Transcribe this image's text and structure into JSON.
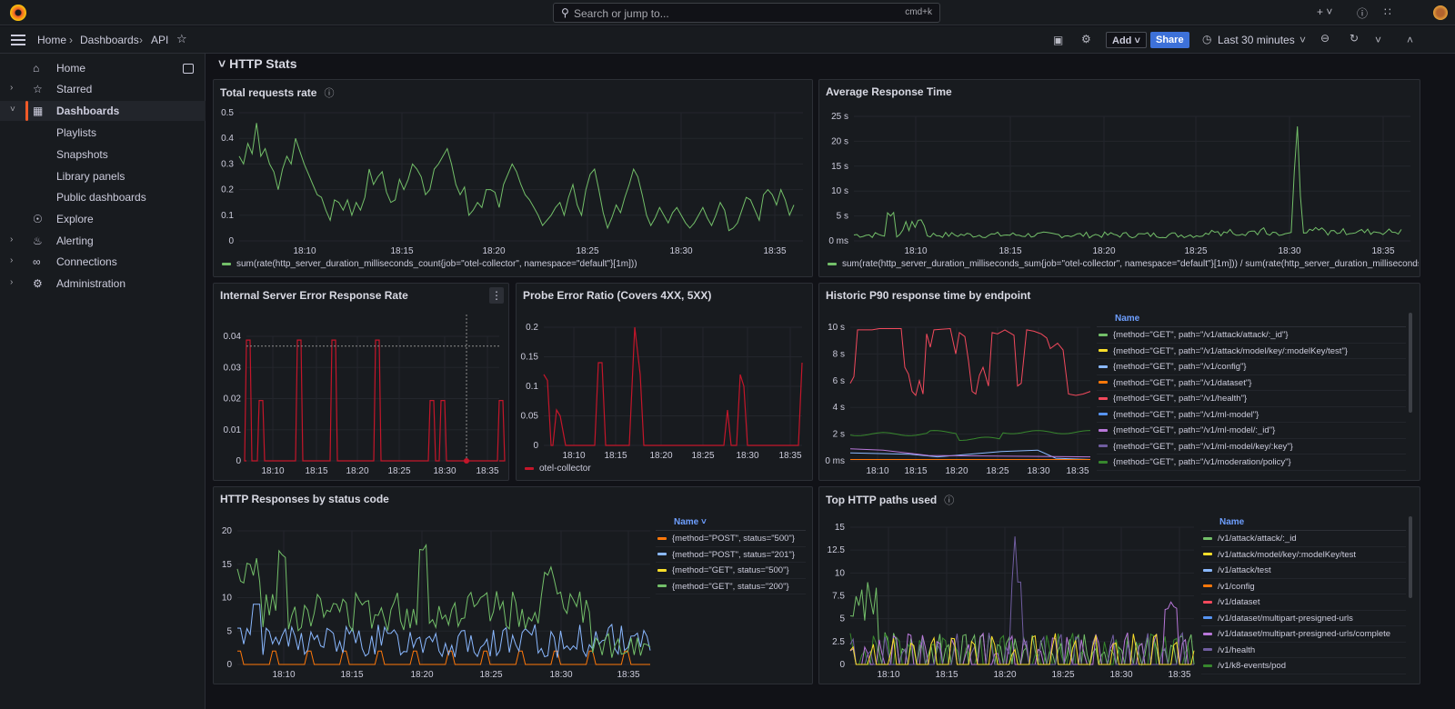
{
  "topbar": {
    "search_placeholder": "Search or jump to...",
    "search_shortcut": "cmd+k",
    "icons": [
      "grafana-logo-icon",
      "search-icon",
      "plus-icon",
      "help-icon",
      "rss-icon",
      "user-avatar"
    ]
  },
  "breadcrumb": {
    "home": "Home",
    "dashboards": "Dashboards",
    "current": "API"
  },
  "toolbar": {
    "add_label": "Add",
    "share_label": "Share",
    "time_range": "Last 30 minutes"
  },
  "sidebar": {
    "items": [
      {
        "label": "Home",
        "icon": "home-icon",
        "expandable": false
      },
      {
        "label": "Starred",
        "icon": "star-icon",
        "expandable": true
      },
      {
        "label": "Dashboards",
        "icon": "apps-icon",
        "expandable": true,
        "active": true
      },
      {
        "label": "Playlists",
        "sub": true
      },
      {
        "label": "Snapshots",
        "sub": true
      },
      {
        "label": "Library panels",
        "sub": true
      },
      {
        "label": "Public dashboards",
        "sub": true
      },
      {
        "label": "Explore",
        "icon": "compass-icon",
        "expandable": false
      },
      {
        "label": "Alerting",
        "icon": "bell-icon",
        "expandable": true
      },
      {
        "label": "Connections",
        "icon": "link-icon",
        "expandable": true
      },
      {
        "label": "Administration",
        "icon": "cog-icon",
        "expandable": true
      }
    ]
  },
  "row_title": "HTTP Stats",
  "colors": {
    "green": "#73bf69",
    "red": "#c4162a",
    "orange": "#ff780a",
    "blue": "#8ab8ff",
    "yellow": "#fade2a",
    "purple": "#ca95e5",
    "pink": "#f2495c",
    "darkgreen": "#37872d",
    "brand": "#f05a28",
    "share": "#3d71d9"
  },
  "time_ticks": [
    "18:10",
    "18:15",
    "18:20",
    "18:25",
    "18:30",
    "18:35"
  ],
  "panels": {
    "total_requests": {
      "title": "Total requests rate",
      "legend": "sum(rate(http_server_duration_milliseconds_count{job=\"otel-collector\", namespace=\"default\"}[1m]))",
      "yticks": [
        "0.5",
        "0.4",
        "0.3",
        "0.2",
        "0.1",
        "0"
      ]
    },
    "avg_response": {
      "title": "Average Response Time",
      "legend": "sum(rate(http_server_duration_milliseconds_sum{job=\"otel-collector\", namespace=\"default\"}[1m])) / sum(rate(http_server_duration_milliseconds_co",
      "yticks": [
        "25 s",
        "20 s",
        "15 s",
        "10 s",
        "5 s",
        "0 ms"
      ]
    },
    "internal_error": {
      "title": "Internal Server Error Response Rate",
      "yticks": [
        "0.04",
        "0.03",
        "0.02",
        "0.01",
        "0"
      ]
    },
    "probe_error": {
      "title": "Probe Error Ratio (Covers 4XX, 5XX)",
      "legend": "otel-collector",
      "yticks": [
        "0.2",
        "0.15",
        "0.1",
        "0.05",
        "0"
      ]
    },
    "p90": {
      "title": "Historic P90 response time by endpoint",
      "legend_header": "Name",
      "yticks": [
        "10 s",
        "8 s",
        "6 s",
        "4 s",
        "2 s",
        "0 ms"
      ],
      "series": [
        {
          "name": "{method=\"GET\", path=\"/v1/attack/attack/:_id\"}",
          "color": "#73bf69"
        },
        {
          "name": "{method=\"GET\", path=\"/v1/attack/model/key/:modelKey/test\"}",
          "color": "#fade2a"
        },
        {
          "name": "{method=\"GET\", path=\"/v1/config\"}",
          "color": "#8ab8ff"
        },
        {
          "name": "{method=\"GET\", path=\"/v1/dataset\"}",
          "color": "#ff780a"
        },
        {
          "name": "{method=\"GET\", path=\"/v1/health\"}",
          "color": "#f2495c"
        },
        {
          "name": "{method=\"GET\", path=\"/v1/ml-model\"}",
          "color": "#5794f2"
        },
        {
          "name": "{method=\"GET\", path=\"/v1/ml-model/:_id\"}",
          "color": "#b877d9"
        },
        {
          "name": "{method=\"GET\", path=\"/v1/ml-model/key/:key\"}",
          "color": "#705da0"
        },
        {
          "name": "{method=\"GET\", path=\"/v1/moderation/policy\"}",
          "color": "#37872d"
        }
      ]
    },
    "status_codes": {
      "title": "HTTP Responses by status code",
      "legend_header": "Name",
      "yticks": [
        "20",
        "15",
        "10",
        "5",
        "0"
      ],
      "series": [
        {
          "name": "{method=\"POST\", status=\"500\"}",
          "color": "#ff780a"
        },
        {
          "name": "{method=\"POST\", status=\"201\"}",
          "color": "#8ab8ff"
        },
        {
          "name": "{method=\"GET\", status=\"500\"}",
          "color": "#fade2a"
        },
        {
          "name": "{method=\"GET\", status=\"200\"}",
          "color": "#73bf69"
        }
      ]
    },
    "top_paths": {
      "title": "Top HTTP paths used",
      "legend_header": "Name",
      "yticks": [
        "15",
        "12.5",
        "10",
        "7.5",
        "5",
        "2.5",
        "0"
      ],
      "series": [
        {
          "name": "/v1/attack/attack/:_id",
          "color": "#73bf69"
        },
        {
          "name": "/v1/attack/model/key/:modelKey/test",
          "color": "#fade2a"
        },
        {
          "name": "/v1/attack/test",
          "color": "#8ab8ff"
        },
        {
          "name": "/v1/config",
          "color": "#ff780a"
        },
        {
          "name": "/v1/dataset",
          "color": "#f2495c"
        },
        {
          "name": "/v1/dataset/multipart-presigned-urls",
          "color": "#5794f2"
        },
        {
          "name": "/v1/dataset/multipart-presigned-urls/complete",
          "color": "#b877d9"
        },
        {
          "name": "/v1/health",
          "color": "#705da0"
        },
        {
          "name": "/v1/k8-events/pod",
          "color": "#37872d"
        }
      ]
    }
  }
}
